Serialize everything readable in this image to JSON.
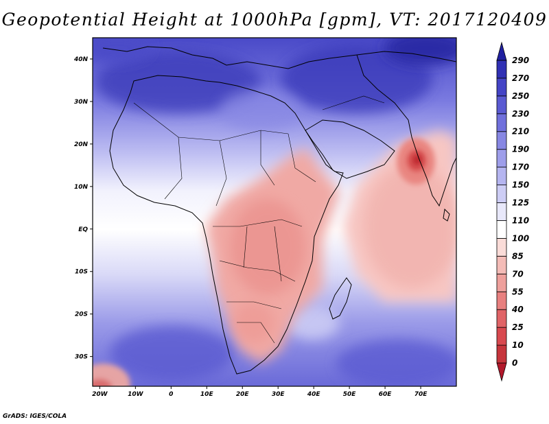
{
  "title": "Geopotential Height at 1000hPa [gpm], VT: 2017120409",
  "footer": "GrADS: IGES/COLA",
  "map": {
    "region": "Africa and Indian Ocean",
    "lon_range": [
      -22,
      80
    ],
    "lat_range": [
      -37,
      45
    ],
    "lon_ticks": [
      "20W",
      "10W",
      "0",
      "10E",
      "20E",
      "30E",
      "40E",
      "50E",
      "60E",
      "70E"
    ],
    "lat_ticks": [
      "40N",
      "30N",
      "20N",
      "10N",
      "EQ",
      "10S",
      "20S",
      "30S"
    ]
  },
  "colorbar": {
    "levels": [
      "0",
      "10",
      "25",
      "40",
      "55",
      "70",
      "85",
      "100",
      "110",
      "125",
      "150",
      "170",
      "190",
      "210",
      "230",
      "250",
      "270",
      "290"
    ],
    "colors": [
      "#b2182b",
      "#c6353c",
      "#d8494f",
      "#e06467",
      "#e8807f",
      "#eea09c",
      "#f4bcb7",
      "#fadcd8",
      "#ffffff",
      "#e8e8fa",
      "#cdcdf5",
      "#b5b5f0",
      "#9e9eea",
      "#8787e3",
      "#7070dc",
      "#5a5ad2",
      "#4444c6",
      "#3030b4",
      "#2020a0"
    ]
  },
  "chart_data": {
    "type": "heatmap",
    "title": "Geopotential Height at 1000hPa [gpm], VT: 2017120409",
    "units": "gpm",
    "valid_time": "2017120409",
    "x_range_deg": [
      -22,
      80
    ],
    "y_range_deg": [
      -37,
      45
    ],
    "contour_levels": [
      0,
      10,
      25,
      40,
      55,
      70,
      85,
      100,
      110,
      125,
      150,
      170,
      190,
      210,
      230,
      250,
      270,
      290
    ],
    "features": [
      {
        "name": "cyclone low west of India",
        "lon": 68,
        "lat": 16,
        "value": 25
      },
      {
        "name": "southwest corner low",
        "lon": -20,
        "lat": -36,
        "value": 70
      },
      {
        "name": "high over Mediterranean / North Africa",
        "lon": 15,
        "lat": 35,
        "value": 230
      },
      {
        "name": "high over Iran / Arabia",
        "lon": 55,
        "lat": 35,
        "value": 250
      },
      {
        "name": "South Atlantic high",
        "lon": 0,
        "lat": -30,
        "value": 210
      },
      {
        "name": "southern Indian Ocean high",
        "lon": 60,
        "lat": -30,
        "value": 190
      }
    ]
  }
}
